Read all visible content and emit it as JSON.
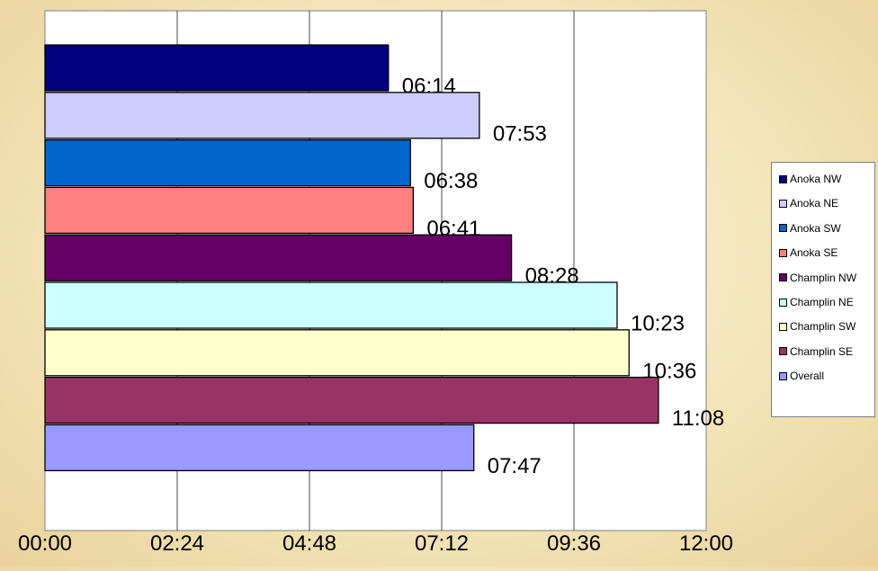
{
  "chart_data": {
    "type": "bar",
    "orientation": "horizontal",
    "title": "",
    "xlabel": "",
    "ylabel": "",
    "xlim": [
      0,
      720
    ],
    "x_tick_labels": [
      "00:00",
      "02:24",
      "04:48",
      "07:12",
      "09:36",
      "12:00"
    ],
    "x_tick_values": [
      0,
      144,
      288,
      432,
      576,
      720
    ],
    "grid": "vertical",
    "legend_position": "right",
    "series": [
      {
        "name": "Anoka NW",
        "value": 374,
        "label": "06:14",
        "color": "#000080"
      },
      {
        "name": "Anoka NE",
        "value": 473,
        "label": "07:53",
        "color": "#ccccff"
      },
      {
        "name": "Anoka SW",
        "value": 398,
        "label": "06:38",
        "color": "#0066cc"
      },
      {
        "name": "Anoka SE",
        "value": 401,
        "label": "06:41",
        "color": "#ff8080"
      },
      {
        "name": "Champlin NW",
        "value": 508,
        "label": "08:28",
        "color": "#660066"
      },
      {
        "name": "Champlin NE",
        "value": 623,
        "label": "10:23",
        "color": "#ccffff"
      },
      {
        "name": "Champlin SW",
        "value": 636,
        "label": "10:36",
        "color": "#ffffcc"
      },
      {
        "name": "Champlin SE",
        "value": 668,
        "label": "11:08",
        "color": "#993366"
      },
      {
        "name": "Overall",
        "value": 467,
        "label": "07:47",
        "color": "#9999ff"
      }
    ]
  }
}
